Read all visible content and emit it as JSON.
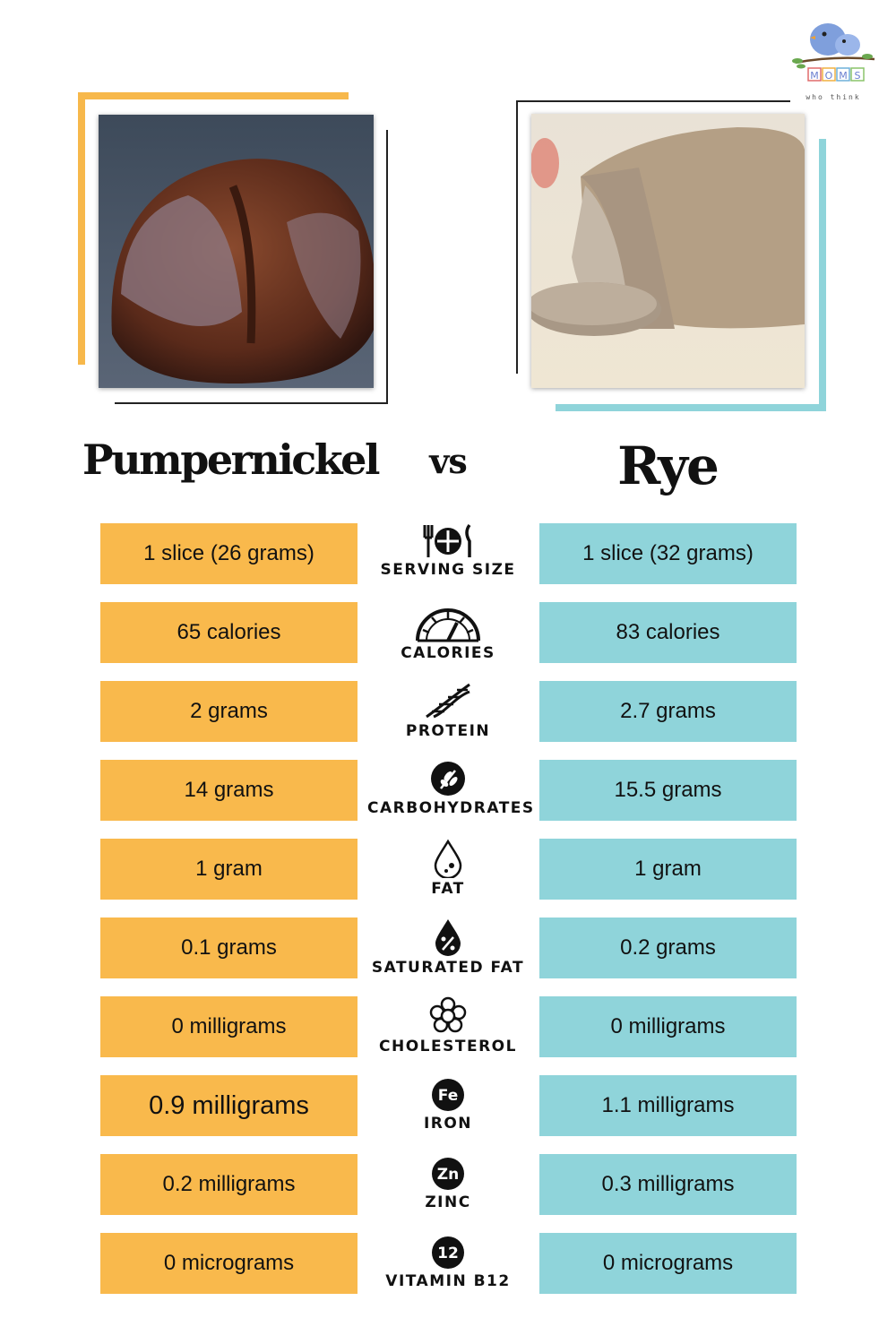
{
  "logo": {
    "letters": [
      "M",
      "O",
      "M",
      "S"
    ],
    "tagline": "who think"
  },
  "titles": {
    "left": "Pumpernickel",
    "vs": "vs",
    "right": "Rye"
  },
  "colors": {
    "pumpernickel": "#f9b94c",
    "rye": "#8fd4da"
  },
  "rows": [
    {
      "icon": "utensils-plate-icon",
      "label": "SERVING SIZE",
      "pumpernickel": "1 slice (26 grams)",
      "rye": "1 slice (32 grams)"
    },
    {
      "icon": "gauge-icon",
      "label": "CALORIES",
      "pumpernickel": "65 calories",
      "rye": "83 calories"
    },
    {
      "icon": "dna-icon",
      "label": "PROTEIN",
      "pumpernickel": "2 grams",
      "rye": "2.7 grams"
    },
    {
      "icon": "grain-icon",
      "label": "CARBOHYDRATES",
      "pumpernickel": "14 grams",
      "rye": "15.5 grams"
    },
    {
      "icon": "drop-icon",
      "label": "FAT",
      "pumpernickel": "1 gram",
      "rye": "1 gram"
    },
    {
      "icon": "percent-drop-icon",
      "label": "SATURATED FAT",
      "pumpernickel": "0.1 grams",
      "rye": "0.2 grams"
    },
    {
      "icon": "cholesterol-icon",
      "label": "CHOLESTEROL",
      "pumpernickel": "0 milligrams",
      "rye": "0 milligrams"
    },
    {
      "icon": "iron-icon",
      "icon_text": "Fe",
      "label": "IRON",
      "pumpernickel": "0.9 milligrams",
      "rye": "1.1 milligrams"
    },
    {
      "icon": "zinc-icon",
      "icon_text": "Zn",
      "label": "ZINC",
      "pumpernickel": "0.2 milligrams",
      "rye": "0.3 milligrams"
    },
    {
      "icon": "vitamin-b12-icon",
      "icon_text": "12",
      "label": "VITAMIN B12",
      "pumpernickel": "0 micrograms",
      "rye": "0 micrograms"
    }
  ]
}
